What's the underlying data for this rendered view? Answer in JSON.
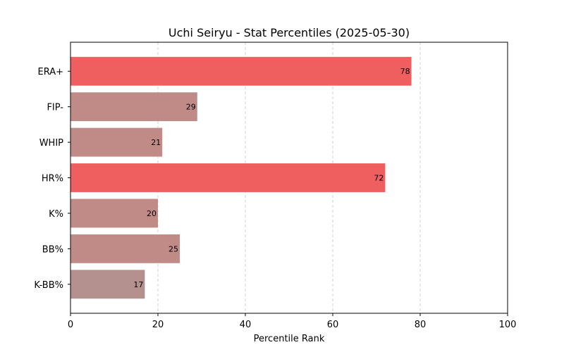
{
  "chart_data": {
    "type": "bar",
    "orientation": "horizontal",
    "title": "Uchi Seiryu - Stat Percentiles (2025-05-30)",
    "xlabel": "Percentile Rank",
    "ylabel": "",
    "xlim": [
      0,
      100
    ],
    "x_ticks": [
      "0",
      "20",
      "40",
      "60",
      "80",
      "100"
    ],
    "grid": "vertical dashed",
    "categories": [
      "ERA+",
      "FIP-",
      "WHIP",
      "HR%",
      "K%",
      "BB%",
      "K-BB%"
    ],
    "values": [
      78,
      29,
      21,
      72,
      20,
      25,
      17
    ],
    "value_labels": [
      "78",
      "29",
      "21",
      "72",
      "20",
      "25",
      "17"
    ],
    "colors": [
      "#ef5f5f",
      "#c08a87",
      "#c08a87",
      "#ef5f5f",
      "#c08a87",
      "#c08a87",
      "#b4918f"
    ]
  }
}
